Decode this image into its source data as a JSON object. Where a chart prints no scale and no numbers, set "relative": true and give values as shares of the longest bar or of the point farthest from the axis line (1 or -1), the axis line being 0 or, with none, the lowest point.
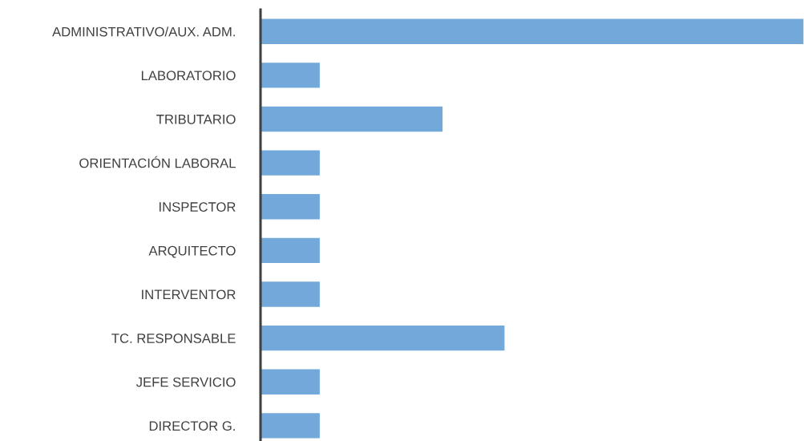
{
  "chart_data": {
    "type": "bar",
    "orientation": "horizontal",
    "relative": true,
    "color": "#72a8da",
    "categories": [
      "ADMINISTRATIVO/AUX. ADM.",
      "LABORATORIO",
      "TRIBUTARIO",
      "ORIENTACIÓN LABORAL",
      "INSPECTOR",
      "ARQUITECTO",
      "INTERVENTOR",
      "TC. RESPONSABLE",
      "JEFE SERVICIO",
      "DIRECTOR G."
    ],
    "values": [
      1,
      0.11,
      0.336,
      0.11,
      0.11,
      0.11,
      0.11,
      0.45,
      0.11,
      0.11
    ],
    "grid": false
  }
}
